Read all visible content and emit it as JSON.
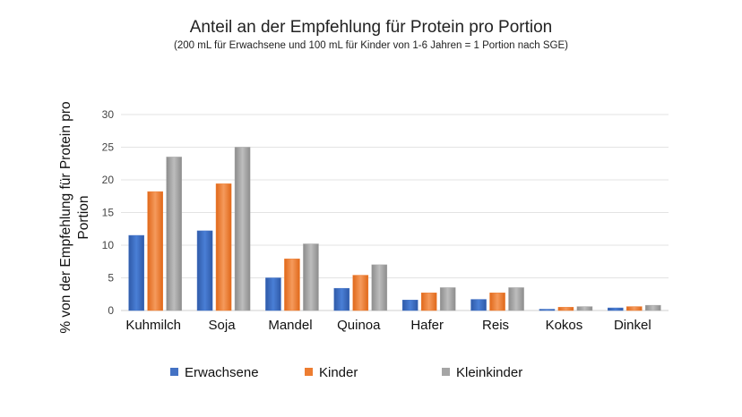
{
  "chart_data": {
    "type": "bar",
    "title": "Anteil an der Empfehlung für Protein pro Portion",
    "subtitle": "(200 mL für Erwachsene  und 100 mL für Kinder von 1-6 Jahren = 1 Portion nach SGE)",
    "ylabel_lines": [
      "% von der Empfehlung für Protein pro",
      "Portion"
    ],
    "xlabel": "",
    "ylim": [
      0,
      30
    ],
    "yticks": [
      "0",
      "5",
      "10",
      "15",
      "20",
      "25",
      "30"
    ],
    "grid": true,
    "legend_position": "bottom",
    "categories": [
      "Kuhmilch",
      "Soja",
      "Mandel",
      "Quinoa",
      "Hafer",
      "Reis",
      "Kokos",
      "Dinkel"
    ],
    "series": [
      {
        "name": "Erwachsene",
        "color": "#4472C4",
        "values": [
          11.5,
          12.2,
          5.0,
          3.4,
          1.6,
          1.7,
          0.2,
          0.4
        ]
      },
      {
        "name": "Kinder",
        "color": "#ED7D31",
        "values": [
          18.2,
          19.4,
          7.9,
          5.4,
          2.7,
          2.7,
          0.5,
          0.6
        ]
      },
      {
        "name": "Kleinkinder",
        "color": "#A5A5A5",
        "values": [
          23.5,
          25.0,
          10.2,
          7.0,
          3.5,
          3.5,
          0.6,
          0.8
        ]
      }
    ]
  }
}
